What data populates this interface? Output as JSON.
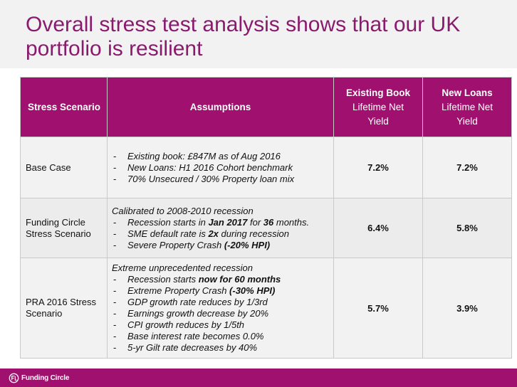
{
  "slide": {
    "title": "Overall stress test analysis shows that our UK\nportfolio is resilient"
  },
  "table": {
    "headers": {
      "scenario": "Stress Scenario",
      "assumptions": "Assumptions",
      "existing_line1": "Existing Book",
      "existing_line2": "Lifetime Net",
      "existing_line3": "Yield",
      "new_line1": "New Loans",
      "new_line2": "Lifetime Net",
      "new_line3": "Yield"
    },
    "rows": [
      {
        "scenario": "Base Case",
        "lead": "",
        "bullets": [
          "Existing book: £847M as of Aug 2016",
          "New Loans: H1 2016 Cohort benchmark",
          "70% Unsecured / 30% Property loan mix"
        ],
        "existing_yield": "7.2%",
        "new_yield": "7.2%"
      },
      {
        "scenario": "Funding Circle Stress Scenario",
        "lead": "Calibrated to 2008-2010 recession",
        "bullets_rich": [
          {
            "a": "Recession starts in ",
            "b": "Jan 2017",
            "c": " for ",
            "d": "36",
            "e": " months."
          },
          {
            "a": "SME default rate is ",
            "b": "2x",
            "c": " during recession",
            "d": "",
            "e": ""
          },
          {
            "a": "Severe Property Crash ",
            "b": "(-20% HPI)",
            "c": "",
            "d": "",
            "e": ""
          }
        ],
        "existing_yield": "6.4%",
        "new_yield": "5.8%"
      },
      {
        "scenario": "PRA 2016 Stress Scenario",
        "lead": "Extreme unprecedented recession",
        "bullets_rich": [
          {
            "a": "Recession starts ",
            "b": "now for 60 months"
          },
          {
            "a": "Extreme Property Crash ",
            "b": "(-30% HPI)"
          }
        ],
        "bullets": [
          "GDP growth rate reduces by 1/3rd",
          "Earnings growth decrease by 20%",
          "CPI growth reduces by 1/5th",
          "Base interest rate becomes 0.0%",
          "5-yr Gilt rate decreases by 40%"
        ],
        "existing_yield": "5.7%",
        "new_yield": "3.9%"
      }
    ]
  },
  "footer": {
    "logo_text": "Funding Circle",
    "logo_icon": "funding-circle-logo-icon",
    "brand_color": "#a0106f"
  }
}
